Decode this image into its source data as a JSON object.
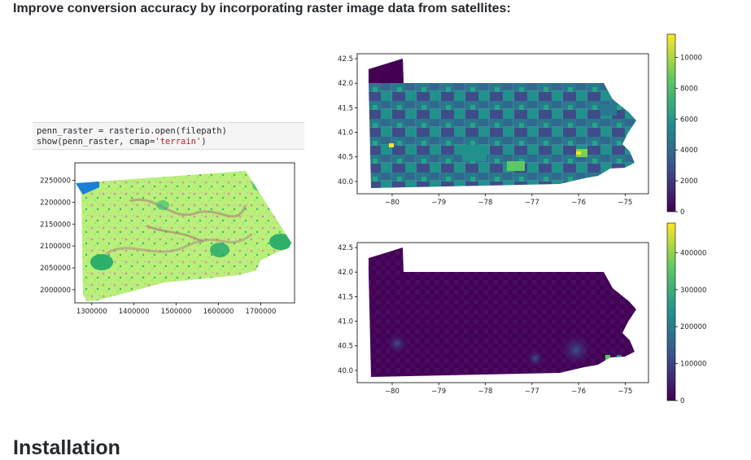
{
  "subheading": "Improve conversion accuracy by incorporating raster image data from satellites:",
  "code": {
    "line1": "penn_raster = rasterio.open(filepath)",
    "line2_pre": "show(penn_raster, cmap=",
    "line2_str": "'terrain'",
    "line2_post": ")"
  },
  "installation_heading": "Installation",
  "colors": {
    "viridis_low": "#440154",
    "viridis_mid": "#21918c",
    "viridis_high": "#fde725",
    "terrain_green": "#b8f07a",
    "terrain_blue": "#1a7fd6"
  },
  "chart_data": [
    {
      "type": "heatmap",
      "title": "",
      "xlabel": "",
      "ylabel": "",
      "x_ticks": [
        "1300000",
        "1400000",
        "1500000",
        "1600000",
        "1700000"
      ],
      "y_ticks": [
        "2000000",
        "2050000",
        "2100000",
        "2150000",
        "2200000",
        "2250000"
      ],
      "xlim": [
        1260000,
        1780000
      ],
      "ylim": [
        1970000,
        2290000
      ],
      "colormap": "terrain",
      "grid": false
    },
    {
      "type": "heatmap",
      "title": "",
      "xlabel": "",
      "ylabel": "",
      "x_ticks": [
        "−80",
        "−79",
        "−78",
        "−77",
        "−76",
        "−75"
      ],
      "y_ticks": [
        "40.0",
        "40.5",
        "41.0",
        "41.5",
        "42.0",
        "42.5"
      ],
      "xlim": [
        -80.75,
        -74.5
      ],
      "ylim": [
        39.75,
        42.6
      ],
      "colormap": "viridis",
      "colorbar_ticks": [
        "0",
        "2000",
        "4000",
        "6000",
        "8000",
        "10000"
      ],
      "colorbar_range": [
        0,
        11500
      ],
      "grid": false
    },
    {
      "type": "heatmap",
      "title": "",
      "xlabel": "",
      "ylabel": "",
      "x_ticks": [
        "−80",
        "−79",
        "−78",
        "−77",
        "−76",
        "−75"
      ],
      "y_ticks": [
        "40.0",
        "40.5",
        "41.0",
        "41.5",
        "42.0",
        "42.5"
      ],
      "xlim": [
        -80.75,
        -74.5
      ],
      "ylim": [
        39.75,
        42.6
      ],
      "colormap": "viridis",
      "colorbar_ticks": [
        "0",
        "100000",
        "200000",
        "300000",
        "400000"
      ],
      "colorbar_range": [
        0,
        480000
      ],
      "grid": false
    }
  ]
}
